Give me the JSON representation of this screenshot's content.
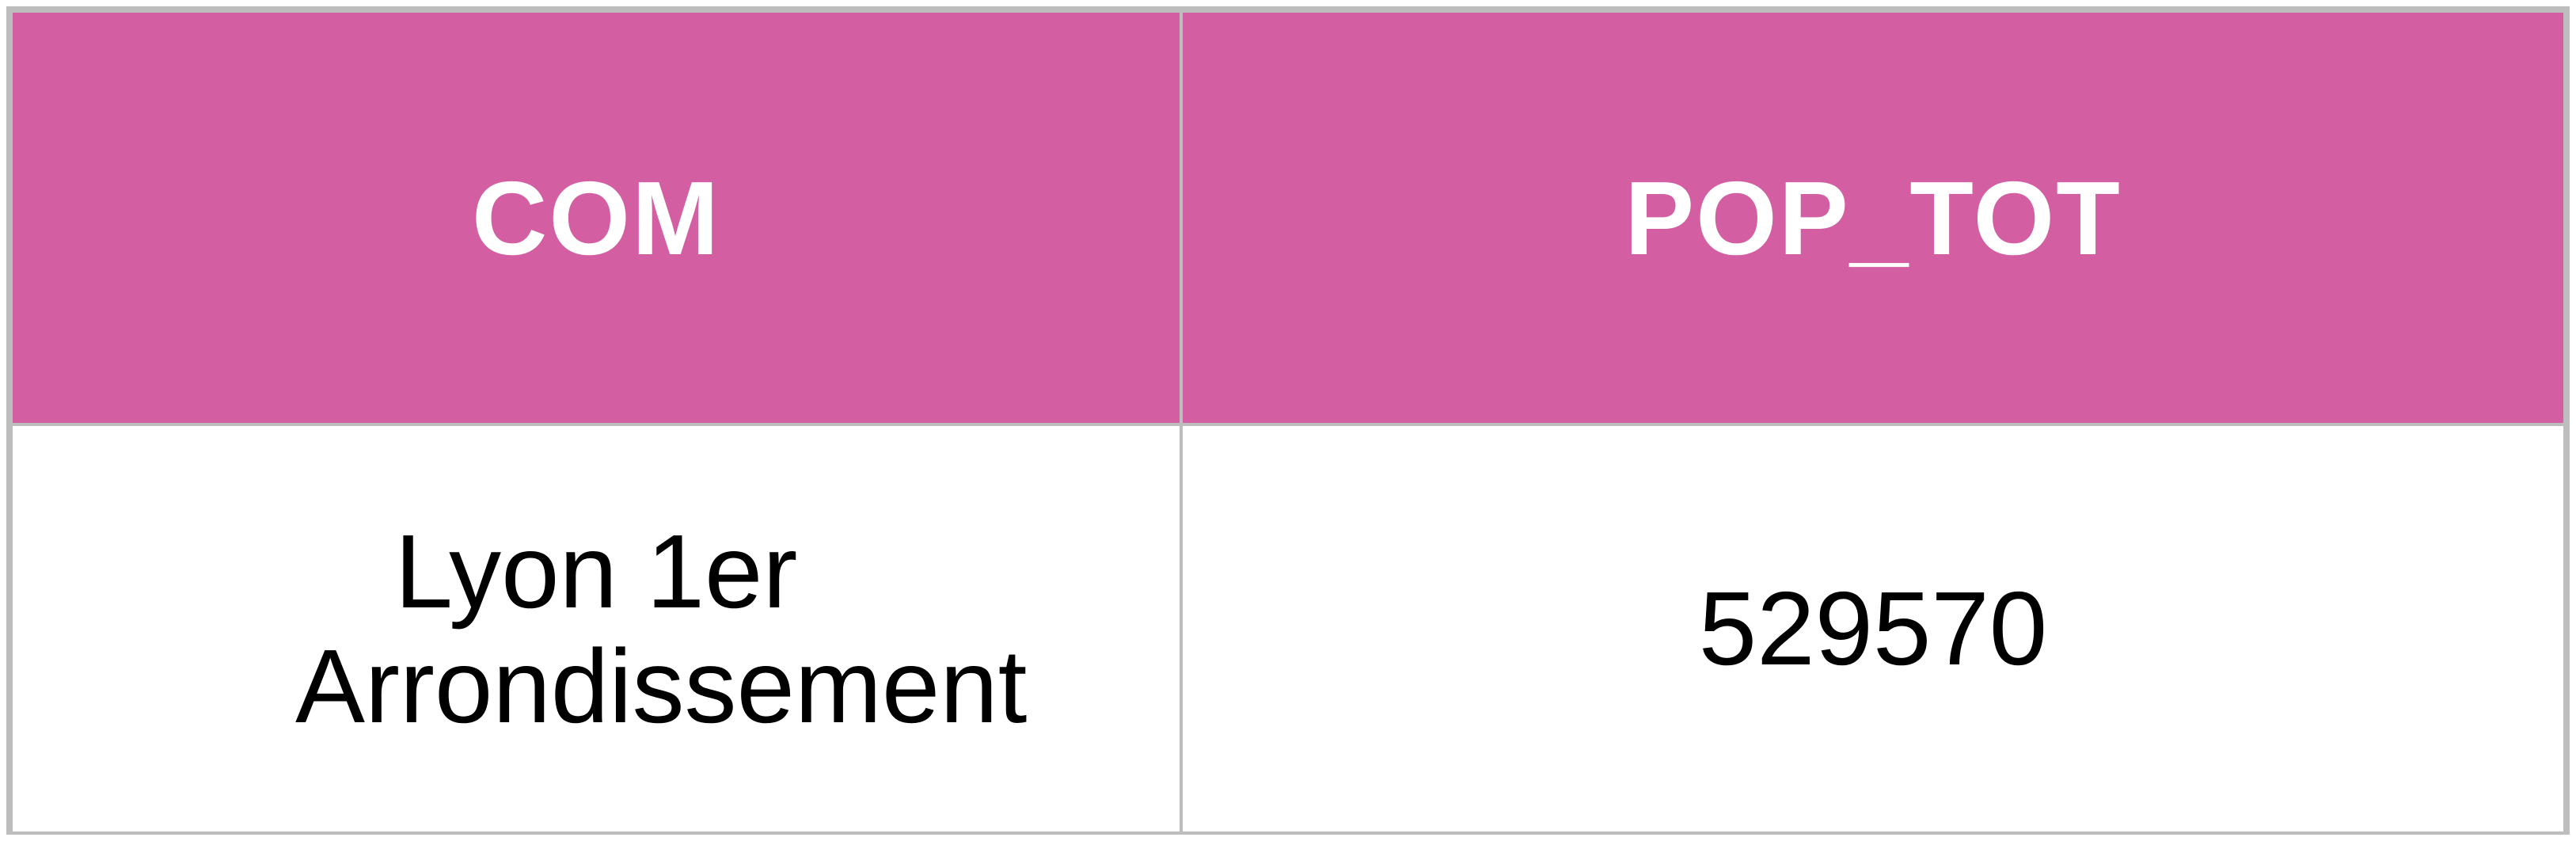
{
  "table": {
    "header_color": "#d35fa2",
    "border_color": "#bdbdbd",
    "columns": [
      "COM",
      "POP_TOT"
    ],
    "rows": [
      [
        "Lyon 1er Arrondissement",
        "529570"
      ]
    ]
  }
}
